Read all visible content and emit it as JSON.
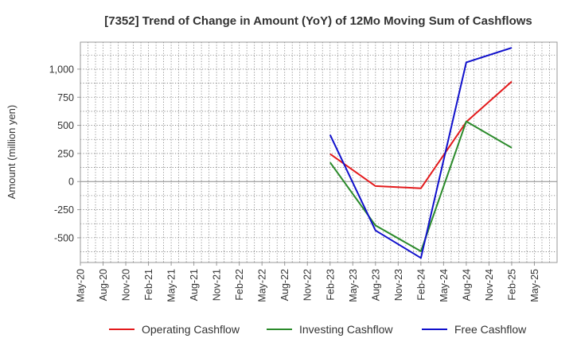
{
  "chart_data": {
    "type": "line",
    "title": "[7352]  Trend of Change in Amount (YoY) of 12Mo Moving Sum of Cashflows",
    "xlabel": "",
    "ylabel": "Amount (million yen)",
    "ylim": [
      -720,
      1240
    ],
    "yticks": [
      {
        "value": 1000,
        "label": "1,000"
      },
      {
        "value": 750,
        "label": "750"
      },
      {
        "value": 500,
        "label": "500"
      },
      {
        "value": 250,
        "label": "250"
      },
      {
        "value": 0,
        "label": "0"
      },
      {
        "value": -250,
        "label": "-250"
      },
      {
        "value": -500,
        "label": "-500"
      }
    ],
    "categories": [
      "May-20",
      "Aug-20",
      "Nov-20",
      "Feb-21",
      "May-21",
      "Aug-21",
      "Nov-21",
      "Feb-22",
      "May-22",
      "Aug-22",
      "Nov-22",
      "Feb-23",
      "May-23",
      "Aug-23",
      "Nov-23",
      "Feb-24",
      "May-24",
      "Aug-24",
      "Nov-24",
      "Feb-25",
      "May-25"
    ],
    "minor_per_major": 3,
    "grid": true,
    "legend_position": "bottom",
    "series": [
      {
        "name": "Operating Cashflow",
        "color": "#e31a1c",
        "points": [
          [
            11,
            245
          ],
          [
            13,
            -40
          ],
          [
            15,
            -60
          ],
          [
            17,
            530
          ],
          [
            19,
            890
          ]
        ]
      },
      {
        "name": "Investing Cashflow",
        "color": "#2a8a2a",
        "points": [
          [
            11,
            170
          ],
          [
            13,
            -390
          ],
          [
            15,
            -620
          ],
          [
            17,
            535
          ],
          [
            19,
            300
          ]
        ]
      },
      {
        "name": "Free Cashflow",
        "color": "#1010cc",
        "points": [
          [
            11,
            415
          ],
          [
            13,
            -435
          ],
          [
            15,
            -680
          ],
          [
            17,
            1060
          ],
          [
            19,
            1190
          ]
        ]
      }
    ]
  }
}
